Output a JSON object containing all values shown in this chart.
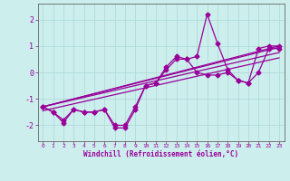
{
  "xlabel": "Windchill (Refroidissement éolien,°C)",
  "bg_color": "#cceeed",
  "line_color": "#990099",
  "xlim": [
    -0.5,
    23.5
  ],
  "ylim": [
    -2.6,
    2.6
  ],
  "xticks": [
    0,
    1,
    2,
    3,
    4,
    5,
    6,
    7,
    8,
    9,
    10,
    11,
    12,
    13,
    14,
    15,
    16,
    17,
    18,
    19,
    20,
    21,
    22,
    23
  ],
  "yticks": [
    -2,
    -1,
    0,
    1,
    2
  ],
  "series_jagged_1": {
    "x": [
      0,
      1,
      2,
      3,
      4,
      5,
      6,
      7,
      8,
      9,
      10,
      11,
      12,
      13,
      14,
      15,
      16,
      17,
      18,
      19,
      20,
      21,
      22,
      23
    ],
    "y": [
      -1.3,
      -1.5,
      -1.9,
      -1.4,
      -1.5,
      -1.5,
      -1.4,
      -2.1,
      -2.1,
      -1.4,
      -0.5,
      -0.4,
      0.1,
      0.5,
      0.5,
      0.6,
      2.2,
      1.1,
      0.1,
      -0.3,
      -0.4,
      0.9,
      1.0,
      1.0
    ]
  },
  "series_jagged_2": {
    "x": [
      0,
      1,
      2,
      3,
      4,
      5,
      6,
      7,
      8,
      9,
      10,
      11,
      12,
      13,
      14,
      15,
      16,
      17,
      18,
      19,
      20,
      21,
      22,
      23
    ],
    "y": [
      -1.3,
      -1.5,
      -1.8,
      -1.4,
      -1.5,
      -1.5,
      -1.4,
      -2.0,
      -2.0,
      -1.3,
      -0.5,
      -0.4,
      0.2,
      0.6,
      0.5,
      0.0,
      -0.1,
      -0.1,
      0.0,
      -0.3,
      -0.4,
      0.0,
      0.9,
      0.9
    ]
  },
  "straight_lines": [
    {
      "x": [
        0,
        23
      ],
      "y": [
        -1.3,
        1.0
      ]
    },
    {
      "x": [
        0,
        23
      ],
      "y": [
        -1.3,
        0.95
      ]
    },
    {
      "x": [
        0,
        23
      ],
      "y": [
        -1.3,
        0.75
      ]
    },
    {
      "x": [
        0,
        23
      ],
      "y": [
        -1.45,
        0.55
      ]
    }
  ],
  "grid_color": "#aad8d5",
  "marker": "D",
  "markersize": 2.5,
  "linewidth": 0.9
}
